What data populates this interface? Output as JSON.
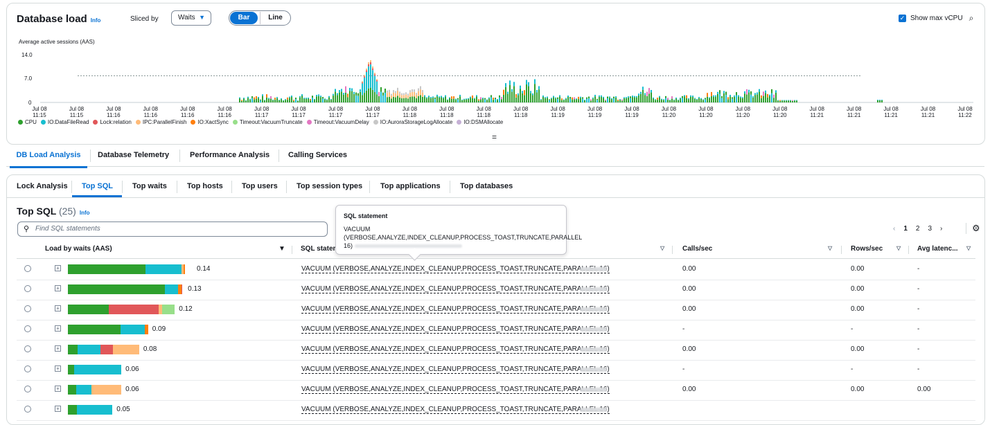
{
  "header": {
    "title": "Database load",
    "info": "Info",
    "sliced_by_label": "Sliced by",
    "sliced_by_value": "Waits",
    "toggle_bar": "Bar",
    "toggle_line": "Line",
    "show_max_vcpu": "Show max vCPU"
  },
  "chart_data": {
    "type": "bar",
    "ylabel": "Average active sessions (AAS)",
    "yticks": [
      "14.0",
      "7.0",
      "0"
    ],
    "ylim": [
      0,
      14
    ],
    "max_vcpu_line": 7.8,
    "x_ticks": [
      [
        "Jul 08",
        "11:15"
      ],
      [
        "Jul 08",
        "11:15"
      ],
      [
        "Jul 08",
        "11:16"
      ],
      [
        "Jul 08",
        "11:16"
      ],
      [
        "Jul 08",
        "11:16"
      ],
      [
        "Jul 08",
        "11:16"
      ],
      [
        "Jul 08",
        "11:17"
      ],
      [
        "Jul 08",
        "11:17"
      ],
      [
        "Jul 08",
        "11:17"
      ],
      [
        "Jul 08",
        "11:17"
      ],
      [
        "Jul 08",
        "11:18"
      ],
      [
        "Jul 08",
        "11:18"
      ],
      [
        "Jul 08",
        "11:18"
      ],
      [
        "Jul 08",
        "11:18"
      ],
      [
        "Jul 08",
        "11:19"
      ],
      [
        "Jul 08",
        "11:19"
      ],
      [
        "Jul 08",
        "11:19"
      ],
      [
        "Jul 08",
        "11:20"
      ],
      [
        "Jul 08",
        "11:20"
      ],
      [
        "Jul 08",
        "11:20"
      ],
      [
        "Jul 08",
        "11:20"
      ],
      [
        "Jul 08",
        "11:21"
      ],
      [
        "Jul 08",
        "11:21"
      ],
      [
        "Jul 08",
        "11:21"
      ],
      [
        "Jul 08",
        "11:21"
      ],
      [
        "Jul 08",
        "11:22"
      ]
    ],
    "legend": [
      {
        "name": "CPU",
        "color": "#2ea02e"
      },
      {
        "name": "IO:DataFileRead",
        "color": "#17becf"
      },
      {
        "name": "Lock:relation",
        "color": "#e15759"
      },
      {
        "name": "IPC:ParallelFinish",
        "color": "#ffbb78"
      },
      {
        "name": "IO:XactSync",
        "color": "#ff7f0e"
      },
      {
        "name": "Timeout:VacuumTruncate",
        "color": "#98df8a"
      },
      {
        "name": "Timeout:VacuumDelay",
        "color": "#e377c2"
      },
      {
        "name": "IO:AuroraStorageLogAllocate",
        "color": "#c7c7c7"
      },
      {
        "name": "IO:DSMAllocate",
        "color": "#c5b0d5"
      }
    ]
  },
  "tabs_main": [
    "DB Load Analysis",
    "Database Telemetry",
    "Performance Analysis",
    "Calling Services"
  ],
  "tabs_sub": [
    "Lock Analysis",
    "Top SQL",
    "Top waits",
    "Top hosts",
    "Top users",
    "Top session types",
    "Top applications",
    "Top databases"
  ],
  "top_sql": {
    "title": "Top SQL",
    "count": "(25)",
    "info": "Info",
    "search_placeholder": "Find SQL statements",
    "pages": [
      "1",
      "2",
      "3"
    ],
    "columns": [
      "Load by waits (AAS)",
      "SQL statem",
      "Calls/sec",
      "Rows/sec",
      "Avg latenc..."
    ],
    "rows": [
      {
        "load": "0.14",
        "segments": [
          0.62,
          0.29,
          0.02,
          0.01
        ],
        "statement": "VACUUM (VERBOSE,ANALYZE,INDEX_CLEANUP,PROCESS_TOAST,TRUNCATE,PARALLEL 16)",
        "calls": "0.00",
        "rows": "0.00",
        "latency": "-"
      },
      {
        "load": "0.13",
        "segments": [
          0.84,
          0.11,
          0.03,
          0.01
        ],
        "statement": "VACUUM (VERBOSE,ANALYZE,INDEX_CLEANUP,PROCESS_TOAST,TRUNCATE,PARALLEL 16)",
        "calls": "0.00",
        "rows": "0.00",
        "latency": "-"
      },
      {
        "load": "0.12",
        "segments": [
          0.38,
          0.47,
          0.03,
          0.12
        ],
        "statement": "VACUUM (VERBOSE,ANALYZE,INDEX_CLEANUP,PROCESS_TOAST,TRUNCATE,PARALLEL 16)",
        "calls": "0.00",
        "rows": "0.00",
        "latency": "-"
      },
      {
        "load": "0.09",
        "segments": [
          0.66,
          0.3,
          0.04
        ],
        "statement": "VACUUM (VERBOSE,ANALYZE,INDEX_CLEANUP,PROCESS_TOAST,TRUNCATE,PARALLEL 16)",
        "calls": "-",
        "rows": "-",
        "latency": "-"
      },
      {
        "load": "0.08",
        "segments": [
          0.14,
          0.32,
          0.17,
          0.37
        ],
        "statement": "VACUUM (VERBOSE,ANALYZE,INDEX_CLEANUP,PROCESS_TOAST,TRUNCATE,PARALLEL 16)",
        "calls": "0.00",
        "rows": "0.00",
        "latency": "-"
      },
      {
        "load": "0.06",
        "segments": [
          0.12,
          0.88
        ],
        "statement": "VACUUM (VERBOSE,ANALYZE,INDEX_CLEANUP,PROCESS_TOAST,TRUNCATE,PARALLEL 16)",
        "calls": "-",
        "rows": "-",
        "latency": "-"
      },
      {
        "load": "0.06",
        "segments": [
          0.16,
          0.28,
          0.56
        ],
        "statement": "VACUUM (VERBOSE,ANALYZE,INDEX_CLEANUP,PROCESS_TOAST,TRUNCATE,PARALLEL 16)",
        "calls": "0.00",
        "rows": "0.00",
        "latency": "0.00"
      },
      {
        "load": "0.05",
        "segments": [
          0.2,
          0.8
        ],
        "statement": "VACUUM (VERBOSE,ANALYZE,INDEX_CLEANUP,PROCESS_TOAST,TRUNCATE,PARALLEL 16)",
        "calls": "",
        "rows": "",
        "latency": ""
      }
    ]
  },
  "tooltip": {
    "title": "SQL statement",
    "text": "VACUUM (VERBOSE,ANALYZE,INDEX_CLEANUP,PROCESS_TOAST,TRUNCATE,PARALLEL 16)"
  }
}
